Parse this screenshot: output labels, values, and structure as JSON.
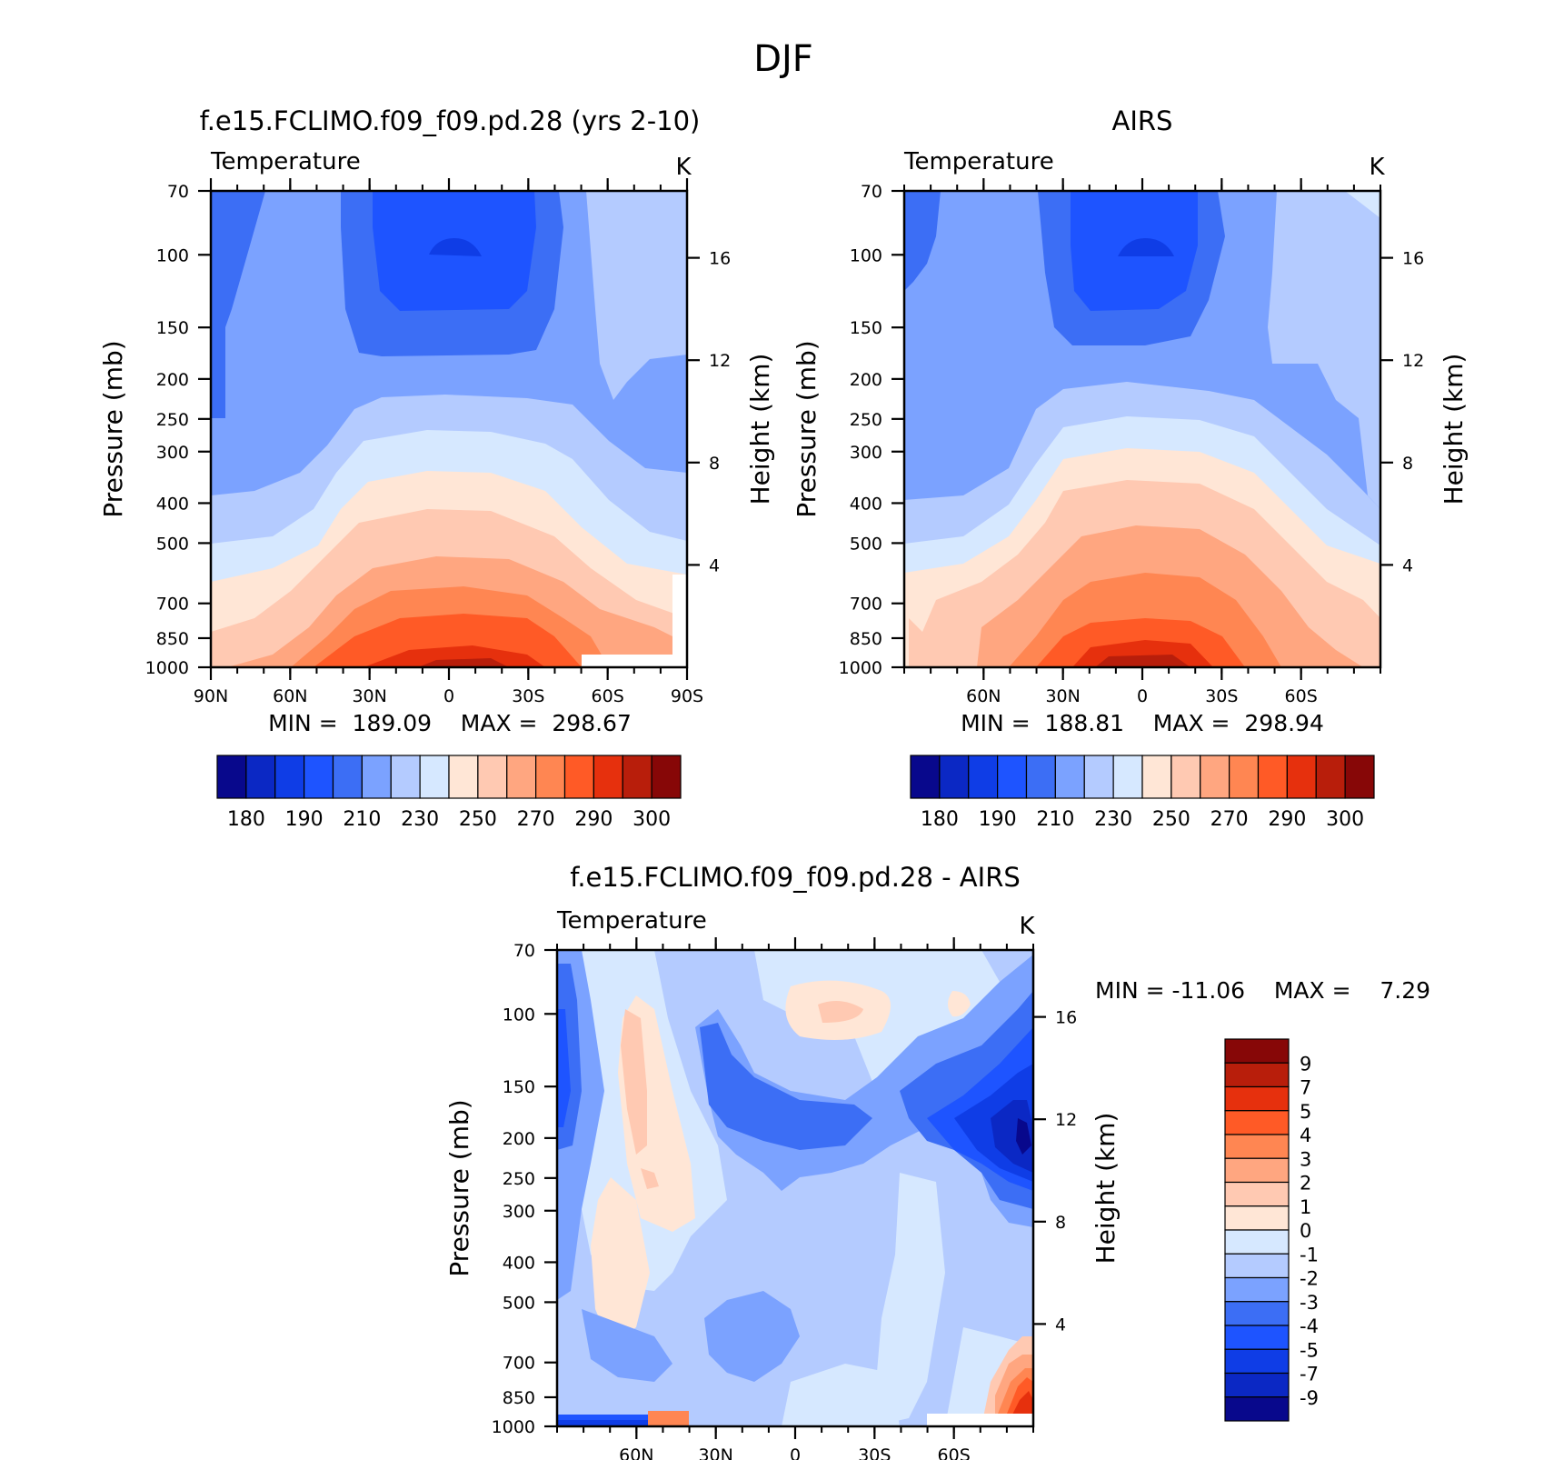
{
  "figure": {
    "title": "DJF"
  },
  "chart_data": [
    {
      "type": "contour",
      "panel": "model",
      "title": "f.e15.FCLIMO.f09_f09.pd.28 (yrs 2-10)",
      "subtitle_left": "Temperature",
      "units": "K",
      "ylabel": "Pressure (mb)",
      "ylabel_right": "Height (km)",
      "x_ticks": [
        "90N",
        "60N",
        "30N",
        "0",
        "30S",
        "60S",
        "90S"
      ],
      "y_ticks": [
        "70",
        "100",
        "150",
        "200",
        "250",
        "300",
        "400",
        "500",
        "700",
        "850",
        "1000"
      ],
      "y_right_ticks": [
        "16",
        "12",
        "8",
        "4"
      ],
      "stats": {
        "text": "MIN =  189.09    MAX =  298.67",
        "min": 189.09,
        "max": 298.67
      },
      "colorbar": {
        "orientation": "horizontal",
        "labels": [
          "180",
          "190",
          "210",
          "230",
          "250",
          "270",
          "290",
          "300"
        ],
        "colors": [
          "#08088c",
          "#0b28c4",
          "#0f3de6",
          "#1e54ff",
          "#3c6ef5",
          "#7ba2ff",
          "#b4cbff",
          "#d6e8ff",
          "#ffe6d6",
          "#ffc9b2",
          "#ffa680",
          "#ff8652",
          "#ff5a26",
          "#e6300d",
          "#b81e0b",
          "#870707"
        ]
      }
    },
    {
      "type": "contour",
      "panel": "obs",
      "title": "AIRS",
      "subtitle_left": "Temperature",
      "units": "K",
      "ylabel": "Pressure (mb)",
      "ylabel_right": "Height (km)",
      "x_ticks": [
        "60N",
        "30N",
        "0",
        "30S",
        "60S"
      ],
      "y_ticks": [
        "70",
        "100",
        "150",
        "200",
        "250",
        "300",
        "400",
        "500",
        "700",
        "850",
        "1000"
      ],
      "y_right_ticks": [
        "16",
        "12",
        "8",
        "4"
      ],
      "stats": {
        "text": "MIN =  188.81    MAX =  298.94",
        "min": 188.81,
        "max": 298.94
      },
      "colorbar": {
        "orientation": "horizontal",
        "labels": [
          "180",
          "190",
          "210",
          "230",
          "250",
          "270",
          "290",
          "300"
        ],
        "colors": [
          "#08088c",
          "#0b28c4",
          "#0f3de6",
          "#1e54ff",
          "#3c6ef5",
          "#7ba2ff",
          "#b4cbff",
          "#d6e8ff",
          "#ffe6d6",
          "#ffc9b2",
          "#ffa680",
          "#ff8652",
          "#ff5a26",
          "#e6300d",
          "#b81e0b",
          "#870707"
        ]
      }
    },
    {
      "type": "contour",
      "panel": "diff",
      "title": "f.e15.FCLIMO.f09_f09.pd.28 - AIRS",
      "subtitle_left": "Temperature",
      "units": "K",
      "ylabel": "Pressure (mb)",
      "ylabel_right": "Height (km)",
      "x_ticks": [
        "60N",
        "30N",
        "0",
        "30S",
        "60S"
      ],
      "y_ticks": [
        "70",
        "100",
        "150",
        "200",
        "250",
        "300",
        "400",
        "500",
        "700",
        "850",
        "1000"
      ],
      "y_right_ticks": [
        "16",
        "12",
        "8",
        "4"
      ],
      "stats": {
        "text": "MIN = -11.06    MAX =    7.29",
        "min": -11.06,
        "max": 7.29
      },
      "colorbar": {
        "orientation": "vertical",
        "labels": [
          "9",
          "7",
          "5",
          "4",
          "3",
          "2",
          "1",
          "0",
          "-1",
          "-2",
          "-3",
          "-4",
          "-5",
          "-7",
          "-9"
        ],
        "colors": [
          "#870707",
          "#b81e0b",
          "#e6300d",
          "#ff5a26",
          "#ff8652",
          "#ffa680",
          "#ffc9b2",
          "#ffe6d6",
          "#d6e8ff",
          "#b4cbff",
          "#7ba2ff",
          "#3c6ef5",
          "#1e54ff",
          "#0f3de6",
          "#0b28c4",
          "#08088c"
        ]
      }
    }
  ]
}
